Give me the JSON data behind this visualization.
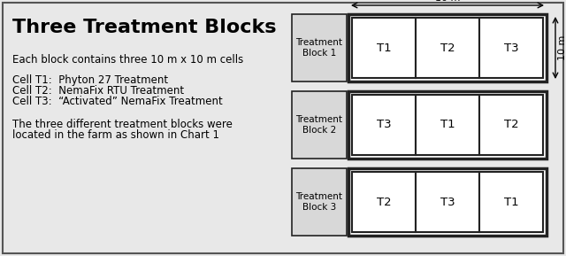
{
  "title": "Three Treatment Blocks",
  "line1": "Each block contains three 10 m x 10 m cells",
  "line2": "Cell T1:  Phyton 27 Treatment",
  "line3": "Cell T2:  NemaFix RTU Treatment",
  "line4": "Cell T3:  “Activated” NemaFix Treatment",
  "line5a": "The three different treatment blocks were",
  "line5b": "located in the farm as shown in Chart 1",
  "blocks": [
    {
      "label": "Treatment\nBlock 1",
      "cells": [
        "T1",
        "T2",
        "T3"
      ]
    },
    {
      "label": "Treatment\nBlock 2",
      "cells": [
        "T3",
        "T1",
        "T2"
      ]
    },
    {
      "label": "Treatment\nBlock 3",
      "cells": [
        "T2",
        "T3",
        "T1"
      ]
    }
  ],
  "fig_bg": "#e8e8e8",
  "cell_bg": "#ffffff",
  "label_bg": "#d8d8d8",
  "border_color": "#222222",
  "dim_label": "10 m"
}
